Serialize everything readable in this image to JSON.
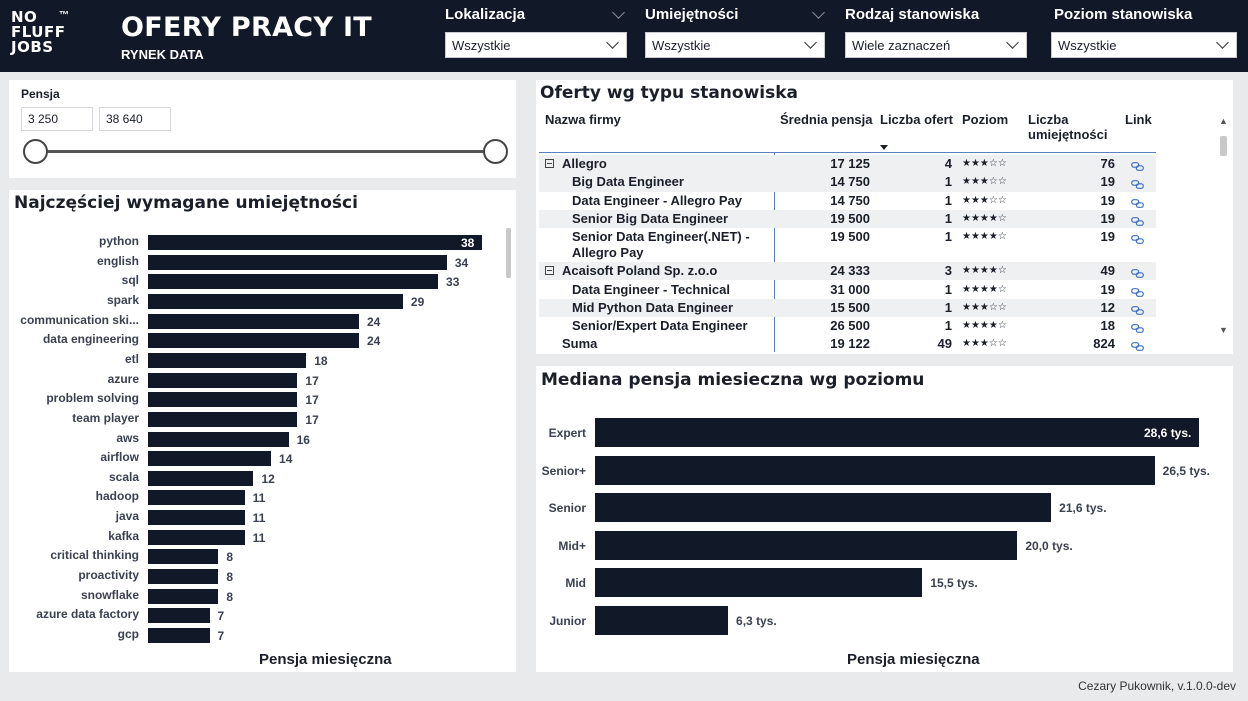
{
  "header": {
    "logo_lines": [
      "NO",
      "FLUFF",
      "JOBS"
    ],
    "logo_tm": "™",
    "title": "OFERY PRACY IT",
    "subtitle": "RYNEK DATA"
  },
  "filters": [
    {
      "label": "Lokalizacja",
      "value": "Wszystkie"
    },
    {
      "label": "Umiejętności",
      "value": "Wszystkie"
    },
    {
      "label": "Rodzaj stanowiska",
      "value": "Wiele zaznaczeń"
    },
    {
      "label": "Poziom stanowiska",
      "value": "Wszystkie"
    }
  ],
  "salary_slider": {
    "label": "Pensja",
    "min_text": "3 250",
    "max_text": "38 640"
  },
  "skills_chart": {
    "title": "Najczęściej wymagane umiejętności",
    "axis_title": "Pensja miesięczna",
    "bar_color": "#111827"
  },
  "chart_data": [
    {
      "type": "bar",
      "orientation": "horizontal",
      "title": "Najczęściej wymagane umiejętności",
      "xlabel": "Pensja miesięczna",
      "categories": [
        "python",
        "english",
        "sql",
        "spark",
        "communication ski...",
        "data engineering",
        "etl",
        "azure",
        "problem solving",
        "team player",
        "aws",
        "airflow",
        "scala",
        "hadoop",
        "java",
        "kafka",
        "critical thinking",
        "proactivity",
        "snowflake",
        "azure data factory",
        "gcp"
      ],
      "values": [
        38,
        34,
        33,
        29,
        24,
        24,
        18,
        17,
        17,
        17,
        16,
        14,
        12,
        11,
        11,
        11,
        8,
        8,
        8,
        7,
        7
      ],
      "xlim": [
        0,
        38
      ]
    },
    {
      "type": "bar",
      "orientation": "horizontal",
      "title": "Mediana pensja miesieczna wg poziomu",
      "xlabel": "Pensja miesięczna",
      "categories": [
        "Expert",
        "Senior+",
        "Senior",
        "Mid+",
        "Mid",
        "Junior"
      ],
      "values": [
        28.6,
        26.5,
        21.6,
        20.0,
        15.5,
        6.3
      ],
      "value_labels": [
        "28,6 tys.",
        "26,5 tys.",
        "21,6 tys.",
        "20,0 tys.",
        "15,5 tys.",
        "6,3 tys."
      ],
      "xlim": [
        0,
        28.6
      ]
    }
  ],
  "offers_table": {
    "title": "Oferty wg typu stanowiska",
    "columns": [
      "Nazwa firmy",
      "Średnia pensja",
      "Liczba ofert",
      "Poziom",
      "Liczba umiejętności",
      "Link"
    ],
    "rows": [
      {
        "kind": "group",
        "name": "Allegro",
        "avg": "17 125",
        "count": "4",
        "stars": 3,
        "skills": "76"
      },
      {
        "kind": "item",
        "name": "Big Data Engineer",
        "avg": "14 750",
        "count": "1",
        "stars": 3,
        "skills": "19"
      },
      {
        "kind": "item",
        "name": "Data Engineer - Allegro Pay",
        "avg": "14 750",
        "count": "1",
        "stars": 3,
        "skills": "19"
      },
      {
        "kind": "item",
        "name": "Senior Big Data Engineer",
        "avg": "19 500",
        "count": "1",
        "stars": 4,
        "skills": "19"
      },
      {
        "kind": "item",
        "name": "Senior Data Engineer(.NET) -",
        "name2": "Allegro Pay",
        "avg": "19 500",
        "count": "1",
        "stars": 4,
        "skills": "19"
      },
      {
        "kind": "group",
        "name": "Acaisoft Poland Sp. z.o.o",
        "avg": "24 333",
        "count": "3",
        "stars": 4,
        "skills": "49"
      },
      {
        "kind": "item",
        "name": "Data Engineer - Technical",
        "avg": "31 000",
        "count": "1",
        "stars": 4,
        "skills": "19"
      },
      {
        "kind": "item",
        "name": "Mid Python Data Engineer",
        "avg": "15 500",
        "count": "1",
        "stars": 3,
        "skills": "12"
      },
      {
        "kind": "item",
        "name": "Senior/Expert Data Engineer",
        "avg": "26 500",
        "count": "1",
        "stars": 4,
        "skills": "18"
      },
      {
        "kind": "total",
        "name": "Suma",
        "avg": "19 122",
        "count": "49",
        "stars": 3,
        "skills": "824"
      }
    ]
  },
  "median_chart": {
    "title": "Mediana pensja miesieczna wg poziomu",
    "axis_title": "Pensja miesięczna"
  },
  "footer": "Cezary Pukownik, v.1.0.0-dev"
}
